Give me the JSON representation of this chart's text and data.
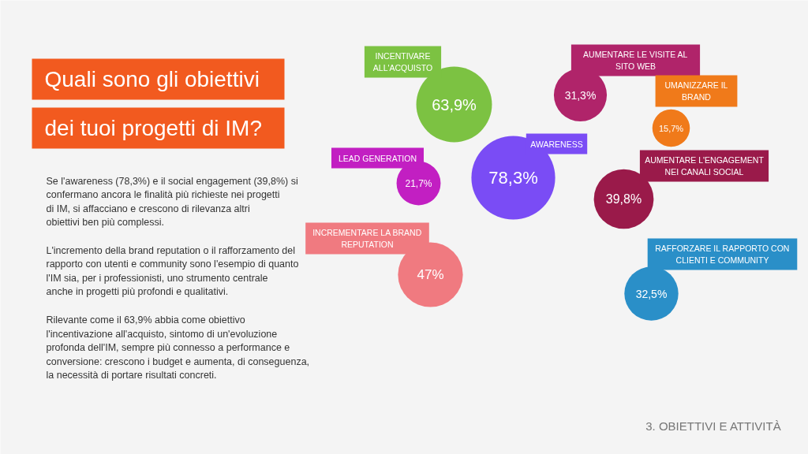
{
  "chart_data": {
    "type": "other",
    "title": "Quali sono gli obiettivi dei tuoi progetti di IM?",
    "categories": [
      "INCENTIVARE ALL'ACQUISTO",
      "AUMENTARE LE VISITE AL SITO WEB",
      "UMANIZZARE IL BRAND",
      "AWARENESS",
      "LEAD GENERATION",
      "AUMENTARE L'ENGAGEMENT NEI CANALI SOCIAL",
      "INCREMENTARE LA BRAND REPUTATION",
      "RAFFORZARE IL RAPPORTO CON CLIENTI E COMMUNITY"
    ],
    "values": [
      63.9,
      31.3,
      15.7,
      78.3,
      21.7,
      39.8,
      47,
      32.5
    ],
    "value_labels": [
      "63,9%",
      "31,3%",
      "15,7%",
      "78,3%",
      "21,7%",
      "39,8%",
      "47%",
      "32,5%"
    ],
    "colors": [
      "#7cc242",
      "#b0246a",
      "#f07a1a",
      "#7a4cf5",
      "#c21fc2",
      "#9a1a4a",
      "#f07a80",
      "#2a8fc8"
    ],
    "annotations": [
      "Se l'awareness (78,3%) e il social engagement (39,8%) si confermano ancora le finalità più richieste nei progetti di IM, si affacciano e crescono di rilevanza altri obiettivi ben più complessi.",
      "L'incremento della brand reputation o il rafforzamento del rapporto con utenti e community sono l'esempio di quanto l'IM sia, per i professionisti, uno strumento centrale anche in progetti più profondi e qualitativi.",
      "Rilevante come il 63,9% abbia come obiettivo l'incentivazione all'acquisto, sintomo di un'evoluzione profonda dell'IM, sempre più connesso a performance e conversione: crescono i budget e aumenta, di conseguenza, la necessità di portare risultati concreti.",
      "3. OBIETTIVI E ATTIVITÀ"
    ]
  }
}
